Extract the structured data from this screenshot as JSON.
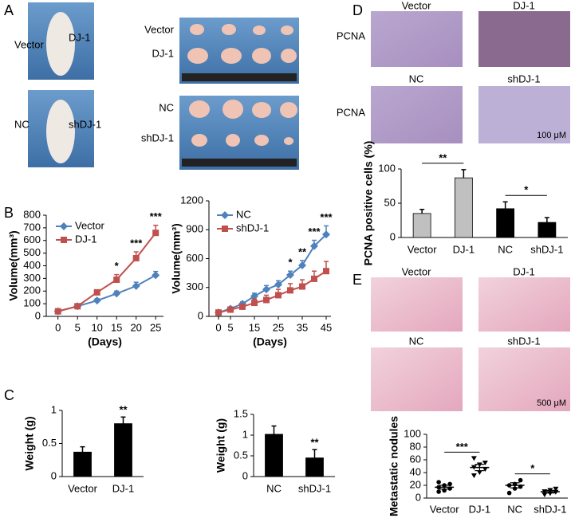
{
  "panel_labels": [
    "A",
    "B",
    "C",
    "D",
    "E"
  ],
  "photos": {
    "A": {
      "mouse_labels": [
        "Vector",
        "DJ-1",
        "NC",
        "shDJ-1"
      ],
      "tumor_labels": [
        "Vector",
        "DJ-1",
        "NC",
        "shDJ-1"
      ]
    },
    "D": {
      "titles": [
        "Vector",
        "DJ-1",
        "NC",
        "shDJ-1"
      ],
      "row_labels": [
        "PCNA",
        "PCNA"
      ],
      "scale": "100 μM"
    },
    "E": {
      "titles": [
        "Vector",
        "DJ-1",
        "NC",
        "shDJ-1"
      ],
      "scale": "500 μM"
    }
  },
  "chart_data": [
    {
      "type": "line",
      "ylabel": "Volume(mm³)",
      "xlabel": "(Days)",
      "x": [
        0,
        5,
        10,
        15,
        20,
        25
      ],
      "xlim": [
        -3,
        27
      ],
      "xticks": [
        0,
        5,
        10,
        15,
        20,
        25
      ],
      "ylim": [
        0,
        800
      ],
      "yticks": [
        0,
        100,
        200,
        300,
        400,
        500,
        600,
        700,
        800
      ],
      "series": [
        {
          "name": "Vector",
          "color": "#4f81bd",
          "marker": "diamond",
          "values": [
            40,
            80,
            125,
            180,
            240,
            325
          ],
          "errors": [
            5,
            5,
            15,
            20,
            30,
            30
          ]
        },
        {
          "name": "DJ-1",
          "color": "#c0504d",
          "marker": "square",
          "values": [
            40,
            80,
            190,
            290,
            460,
            660
          ],
          "errors": [
            5,
            8,
            15,
            40,
            50,
            60
          ]
        }
      ],
      "annotations": [
        {
          "x": 15,
          "text": "*"
        },
        {
          "x": 20,
          "text": "***"
        },
        {
          "x": 25,
          "text": "***"
        }
      ]
    },
    {
      "type": "line",
      "ylabel": "Volume(mm³)",
      "xlabel": "(Days)",
      "x": [
        0,
        5,
        10,
        15,
        20,
        25,
        30,
        35,
        40,
        45
      ],
      "xlim": [
        -4,
        47
      ],
      "xticks": [
        0,
        5,
        15,
        25,
        35,
        45
      ],
      "ylim": [
        0,
        1200
      ],
      "yticks": [
        0,
        300,
        600,
        900,
        1200
      ],
      "series": [
        {
          "name": "NC",
          "color": "#4f81bd",
          "marker": "diamond",
          "values": [
            40,
            80,
            130,
            210,
            280,
            330,
            430,
            530,
            730,
            850
          ],
          "errors": [
            5,
            10,
            20,
            30,
            40,
            40,
            40,
            50,
            60,
            90
          ]
        },
        {
          "name": "shDJ-1",
          "color": "#c0504d",
          "marker": "square",
          "values": [
            40,
            70,
            100,
            140,
            170,
            220,
            270,
            310,
            390,
            470
          ],
          "errors": [
            5,
            10,
            20,
            40,
            50,
            60,
            70,
            70,
            80,
            100
          ]
        }
      ],
      "annotations": [
        {
          "x": 30,
          "text": "*"
        },
        {
          "x": 35,
          "text": "**"
        },
        {
          "x": 40,
          "text": "***"
        },
        {
          "x": 45,
          "text": "***"
        }
      ]
    },
    {
      "type": "bar",
      "ylabel": "Weight (g)",
      "categories": [
        "Vector",
        "DJ-1"
      ],
      "values": [
        0.37,
        0.8
      ],
      "errors": [
        0.08,
        0.1
      ],
      "colors": [
        "#000000",
        "#000000"
      ],
      "ylim": [
        0,
        1
      ],
      "yticks": [
        0,
        0.5,
        1
      ],
      "annotations": [
        {
          "category": "DJ-1",
          "text": "**"
        }
      ]
    },
    {
      "type": "bar",
      "ylabel": "Weight (g)",
      "categories": [
        "NC",
        "shDJ-1"
      ],
      "values": [
        1.02,
        0.45
      ],
      "errors": [
        0.2,
        0.2
      ],
      "colors": [
        "#000000",
        "#000000"
      ],
      "ylim": [
        0,
        1.5
      ],
      "yticks": [
        0,
        0.5,
        1,
        1.5
      ],
      "annotations": [
        {
          "category": "shDJ-1",
          "text": "**"
        }
      ]
    },
    {
      "type": "bar",
      "ylabel": "PCNA  positive cells (%)",
      "categories": [
        "Vector",
        "DJ-1",
        "NC",
        "shDJ-1"
      ],
      "values": [
        35,
        87,
        42,
        22
      ],
      "errors": [
        6,
        12,
        10,
        7
      ],
      "colors": [
        "#c0c0c0",
        "#c0c0c0",
        "#000000",
        "#000000"
      ],
      "ylim": [
        0,
        100
      ],
      "yticks": [
        0,
        50,
        100
      ],
      "brackets": [
        {
          "between": [
            "Vector",
            "DJ-1"
          ],
          "text": "**"
        },
        {
          "between": [
            "NC",
            "shDJ-1"
          ],
          "text": "*"
        }
      ]
    },
    {
      "type": "dot",
      "ylabel": "Metastatic nodules",
      "categories": [
        "Vector",
        "DJ-1",
        "NC",
        "shDJ-1"
      ],
      "points": [
        [
          10,
          12,
          15,
          17,
          20,
          22,
          25
        ],
        [
          35,
          40,
          45,
          48,
          52,
          55,
          62
        ],
        [
          8,
          15,
          18,
          20,
          22,
          28
        ],
        [
          5,
          7,
          9,
          10,
          12,
          14
        ]
      ],
      "means": [
        17,
        48,
        20,
        10
      ],
      "errors": [
        3,
        5,
        4,
        2
      ],
      "ylim": [
        0,
        100
      ],
      "yticks": [
        0,
        20,
        40,
        60,
        80,
        100
      ],
      "brackets": [
        {
          "between": [
            "Vector",
            "DJ-1"
          ],
          "text": "***"
        },
        {
          "between": [
            "NC",
            "shDJ-1"
          ],
          "text": "*"
        }
      ]
    }
  ]
}
